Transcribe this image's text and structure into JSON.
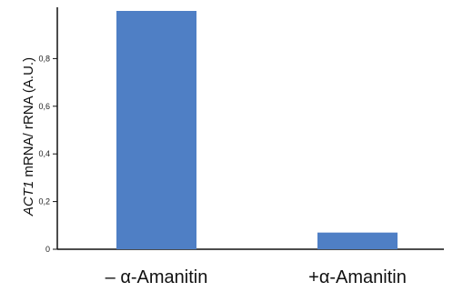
{
  "chart_data": {
    "type": "bar",
    "categories": [
      "– α-Amanitin",
      "+α-Amanitin"
    ],
    "values": [
      1.0,
      0.07
    ],
    "ylabel_gene": "ACT1",
    "ylabel_rest": " mRNA/ rRNA (A.U.)",
    "ylim": [
      0,
      1.0
    ],
    "yticks": [
      "0",
      "0,2",
      "0,4",
      "0,6",
      "0,8"
    ],
    "ytick_values": [
      0,
      0.2,
      0.4,
      0.6,
      0.8
    ],
    "bar_color": "#4f7fc5",
    "grid": false
  }
}
